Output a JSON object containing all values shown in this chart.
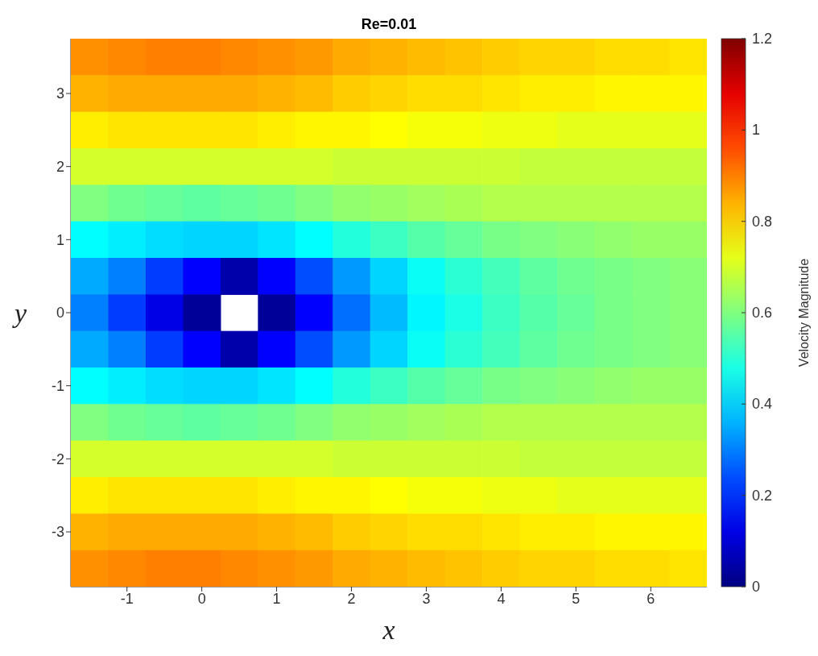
{
  "chart_data": {
    "type": "heatmap",
    "title": "Re=0.01",
    "xlabel": "x",
    "ylabel": "y",
    "clabel": "Velocity Magnitude",
    "categories": [
      null,
      "-1",
      null,
      "0",
      null,
      "1",
      null,
      "2",
      null,
      "3",
      null,
      "4",
      null,
      "5",
      null,
      "6",
      null
    ],
    "y_categories": [
      null,
      "3",
      null,
      "2",
      null,
      "1",
      null,
      "0",
      null,
      "-1",
      null,
      "-2",
      null,
      "-3",
      null
    ],
    "clim": [
      0,
      1.2
    ],
    "cticks": [
      0,
      0.2,
      0.4,
      0.6,
      0.8,
      1,
      1.2
    ],
    "cells": [
      [
        0.88,
        0.89,
        0.9,
        0.9,
        0.89,
        0.88,
        0.87,
        0.85,
        0.84,
        0.83,
        0.82,
        0.81,
        0.8,
        0.8,
        0.79,
        0.79,
        0.78
      ],
      [
        0.84,
        0.85,
        0.85,
        0.85,
        0.85,
        0.84,
        0.83,
        0.81,
        0.8,
        0.79,
        0.79,
        0.78,
        0.77,
        0.77,
        0.76,
        0.76,
        0.76
      ],
      [
        0.77,
        0.78,
        0.78,
        0.78,
        0.78,
        0.77,
        0.76,
        0.76,
        0.75,
        0.74,
        0.74,
        0.73,
        0.73,
        0.72,
        0.72,
        0.72,
        0.72
      ],
      [
        0.7,
        0.7,
        0.7,
        0.7,
        0.7,
        0.7,
        0.7,
        0.69,
        0.69,
        0.69,
        0.69,
        0.69,
        0.68,
        0.68,
        0.68,
        0.68,
        0.68
      ],
      [
        0.6,
        0.58,
        0.57,
        0.56,
        0.57,
        0.58,
        0.6,
        0.62,
        0.63,
        0.64,
        0.65,
        0.66,
        0.66,
        0.66,
        0.66,
        0.66,
        0.66
      ],
      [
        0.45,
        0.43,
        0.41,
        0.4,
        0.4,
        0.42,
        0.45,
        0.49,
        0.52,
        0.55,
        0.57,
        0.59,
        0.6,
        0.61,
        0.62,
        0.63,
        0.63
      ],
      [
        0.35,
        0.3,
        0.22,
        0.15,
        0.05,
        0.15,
        0.24,
        0.33,
        0.4,
        0.46,
        0.5,
        0.53,
        0.56,
        0.58,
        0.59,
        0.6,
        0.61
      ],
      [
        0.3,
        0.22,
        0.12,
        0.03,
        null,
        0.03,
        0.15,
        0.28,
        0.37,
        0.44,
        0.48,
        0.52,
        0.55,
        0.57,
        0.59,
        0.6,
        0.61
      ],
      [
        0.35,
        0.3,
        0.22,
        0.15,
        0.05,
        0.15,
        0.24,
        0.33,
        0.4,
        0.46,
        0.5,
        0.53,
        0.56,
        0.58,
        0.59,
        0.6,
        0.61
      ],
      [
        0.45,
        0.43,
        0.41,
        0.4,
        0.4,
        0.42,
        0.45,
        0.49,
        0.52,
        0.55,
        0.57,
        0.59,
        0.6,
        0.61,
        0.62,
        0.63,
        0.63
      ],
      [
        0.6,
        0.58,
        0.57,
        0.56,
        0.57,
        0.58,
        0.6,
        0.62,
        0.63,
        0.64,
        0.65,
        0.66,
        0.66,
        0.66,
        0.66,
        0.66,
        0.66
      ],
      [
        0.7,
        0.7,
        0.7,
        0.7,
        0.7,
        0.7,
        0.7,
        0.69,
        0.69,
        0.69,
        0.69,
        0.69,
        0.68,
        0.68,
        0.68,
        0.68,
        0.68
      ],
      [
        0.77,
        0.78,
        0.78,
        0.78,
        0.78,
        0.77,
        0.76,
        0.76,
        0.75,
        0.74,
        0.74,
        0.73,
        0.73,
        0.72,
        0.72,
        0.72,
        0.72
      ],
      [
        0.84,
        0.85,
        0.85,
        0.85,
        0.85,
        0.84,
        0.83,
        0.81,
        0.8,
        0.79,
        0.79,
        0.78,
        0.77,
        0.77,
        0.76,
        0.76,
        0.76
      ],
      [
        0.88,
        0.89,
        0.9,
        0.9,
        0.89,
        0.88,
        0.87,
        0.85,
        0.84,
        0.83,
        0.82,
        0.81,
        0.8,
        0.8,
        0.79,
        0.79,
        0.78
      ]
    ]
  }
}
